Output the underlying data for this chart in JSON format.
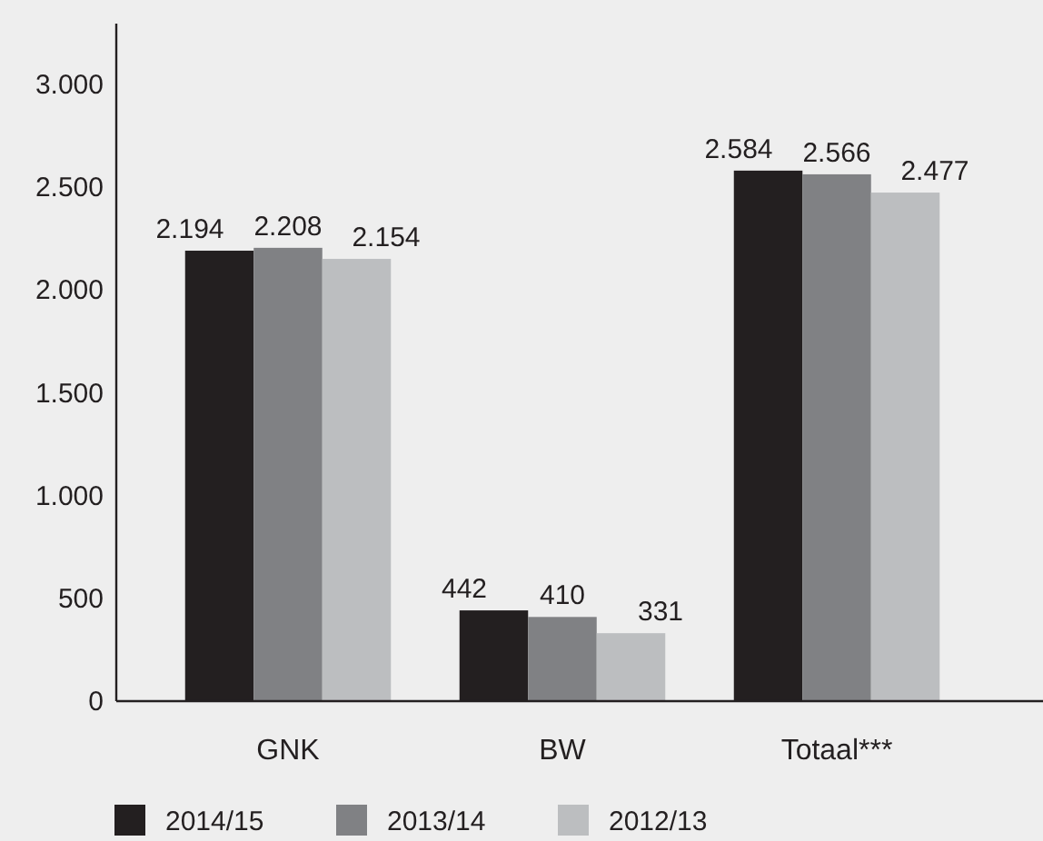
{
  "chart_data": {
    "type": "bar",
    "categories": [
      "GNK",
      "BW",
      "Totaal***"
    ],
    "series": [
      {
        "name": "2014/15",
        "color": "#231f20",
        "values": [
          2194,
          442,
          2584
        ],
        "value_labels": [
          "2.194",
          "442",
          "2.584"
        ]
      },
      {
        "name": "2013/14",
        "color": "#808184",
        "values": [
          2208,
          410,
          2566
        ],
        "value_labels": [
          "2.208",
          "410",
          "2.566"
        ]
      },
      {
        "name": "2012/13",
        "color": "#bcbec0",
        "values": [
          2154,
          331,
          2477
        ],
        "value_labels": [
          "2.154",
          "331",
          "2.477"
        ]
      }
    ],
    "ylim": [
      0,
      3300
    ],
    "yticks": [
      {
        "value": 0,
        "label": "0"
      },
      {
        "value": 500,
        "label": "500"
      },
      {
        "value": 1000,
        "label": "1.000"
      },
      {
        "value": 1500,
        "label": "1.500"
      },
      {
        "value": 2000,
        "label": "2.000"
      },
      {
        "value": 2500,
        "label": "2.500"
      },
      {
        "value": 3000,
        "label": "3.000"
      }
    ],
    "legend": "bottom"
  }
}
